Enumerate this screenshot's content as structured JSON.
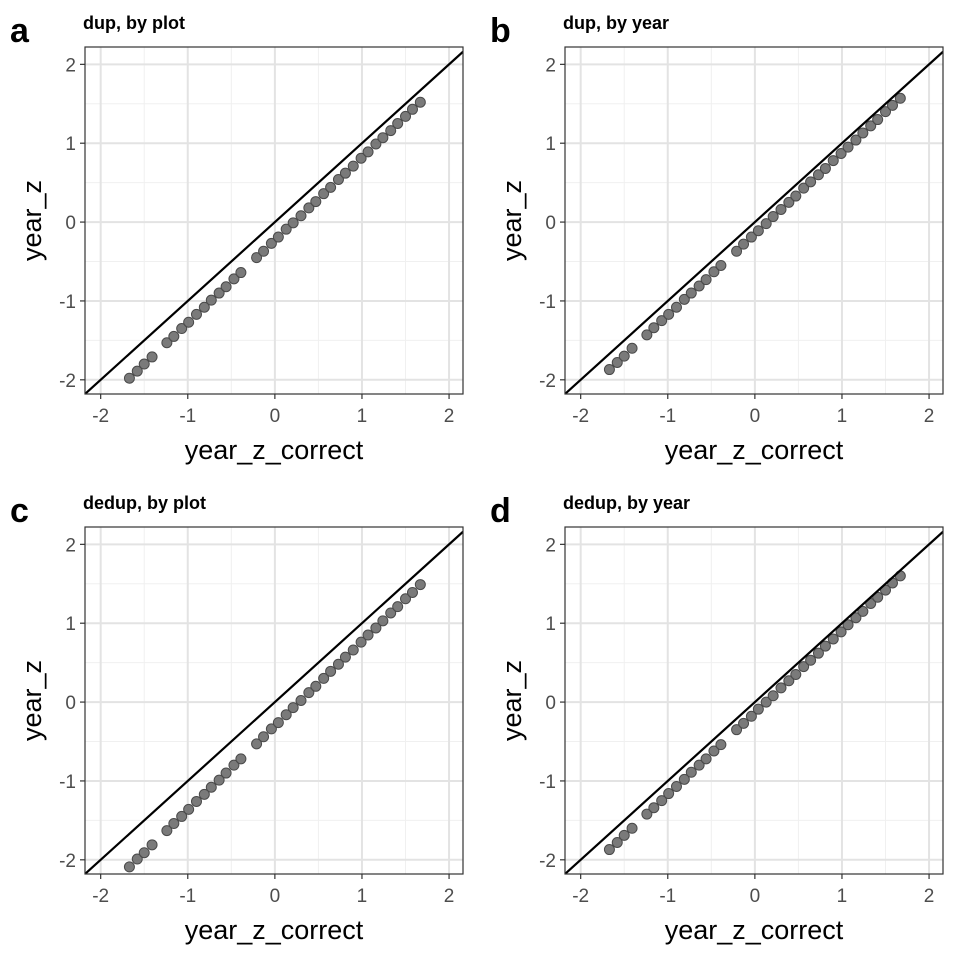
{
  "chart_data": [
    {
      "type": "scatter",
      "tag": "a",
      "title": "dup, by plot",
      "x_label": "year_z_correct",
      "y_label": "year_z",
      "xlim": [
        -2.18,
        2.16
      ],
      "ylim": [
        -2.18,
        2.22
      ],
      "xticks": [
        -2,
        -1,
        0,
        1,
        2
      ],
      "yticks": [
        -2,
        -1,
        0,
        1,
        2
      ],
      "xminor": [
        -1.5,
        -0.5,
        0.5,
        1.5
      ],
      "yminor": [
        -1.5,
        -0.5,
        0.5,
        1.5
      ],
      "grid": true,
      "identity_line": true,
      "color": "#6b6b6b",
      "x": [
        -1.67,
        -1.58,
        -1.5,
        -1.41,
        -1.24,
        -1.16,
        -1.07,
        -0.99,
        -0.9,
        -0.81,
        -0.73,
        -0.64,
        -0.56,
        -0.47,
        -0.39,
        -0.21,
        -0.13,
        -0.04,
        0.04,
        0.13,
        0.21,
        0.3,
        0.39,
        0.47,
        0.56,
        0.64,
        0.73,
        0.81,
        0.9,
        0.99,
        1.07,
        1.16,
        1.24,
        1.33,
        1.41,
        1.5,
        1.58,
        1.67
      ],
      "values": [
        -1.98,
        -1.89,
        -1.8,
        -1.71,
        -1.53,
        -1.45,
        -1.35,
        -1.27,
        -1.17,
        -1.08,
        -0.99,
        -0.9,
        -0.82,
        -0.72,
        -0.64,
        -0.45,
        -0.37,
        -0.27,
        -0.19,
        -0.09,
        -0.01,
        0.08,
        0.18,
        0.26,
        0.36,
        0.44,
        0.54,
        0.62,
        0.71,
        0.81,
        0.89,
        0.99,
        1.07,
        1.16,
        1.25,
        1.34,
        1.43,
        1.52
      ]
    },
    {
      "type": "scatter",
      "tag": "b",
      "title": "dup, by year",
      "x_label": "year_z_correct",
      "y_label": "year_z",
      "xlim": [
        -2.18,
        2.16
      ],
      "ylim": [
        -2.18,
        2.22
      ],
      "xticks": [
        -2,
        -1,
        0,
        1,
        2
      ],
      "yticks": [
        -2,
        -1,
        0,
        1,
        2
      ],
      "xminor": [
        -1.5,
        -0.5,
        0.5,
        1.5
      ],
      "yminor": [
        -1.5,
        -0.5,
        0.5,
        1.5
      ],
      "grid": true,
      "identity_line": true,
      "color": "#6b6b6b",
      "x": [
        -1.67,
        -1.58,
        -1.5,
        -1.41,
        -1.24,
        -1.16,
        -1.07,
        -0.99,
        -0.9,
        -0.81,
        -0.73,
        -0.64,
        -0.56,
        -0.47,
        -0.39,
        -0.21,
        -0.13,
        -0.04,
        0.04,
        0.13,
        0.21,
        0.3,
        0.39,
        0.47,
        0.56,
        0.64,
        0.73,
        0.81,
        0.9,
        0.99,
        1.07,
        1.16,
        1.24,
        1.33,
        1.41,
        1.5,
        1.58,
        1.67
      ],
      "values": [
        -1.87,
        -1.78,
        -1.7,
        -1.6,
        -1.43,
        -1.34,
        -1.25,
        -1.17,
        -1.08,
        -0.98,
        -0.9,
        -0.81,
        -0.73,
        -0.63,
        -0.55,
        -0.37,
        -0.28,
        -0.19,
        -0.11,
        -0.02,
        0.07,
        0.16,
        0.25,
        0.33,
        0.43,
        0.51,
        0.6,
        0.68,
        0.78,
        0.87,
        0.95,
        1.04,
        1.13,
        1.22,
        1.3,
        1.4,
        1.48,
        1.57
      ]
    },
    {
      "type": "scatter",
      "tag": "c",
      "title": "dedup, by plot",
      "x_label": "year_z_correct",
      "y_label": "year_z",
      "xlim": [
        -2.18,
        2.16
      ],
      "ylim": [
        -2.18,
        2.22
      ],
      "xticks": [
        -2,
        -1,
        0,
        1,
        2
      ],
      "yticks": [
        -2,
        -1,
        0,
        1,
        2
      ],
      "xminor": [
        -1.5,
        -0.5,
        0.5,
        1.5
      ],
      "yminor": [
        -1.5,
        -0.5,
        0.5,
        1.5
      ],
      "grid": true,
      "identity_line": true,
      "color": "#6b6b6b",
      "x": [
        -1.67,
        -1.58,
        -1.5,
        -1.41,
        -1.24,
        -1.16,
        -1.07,
        -0.99,
        -0.9,
        -0.81,
        -0.73,
        -0.64,
        -0.56,
        -0.47,
        -0.39,
        -0.21,
        -0.13,
        -0.04,
        0.04,
        0.13,
        0.21,
        0.3,
        0.39,
        0.47,
        0.56,
        0.64,
        0.73,
        0.81,
        0.9,
        0.99,
        1.07,
        1.16,
        1.24,
        1.33,
        1.41,
        1.5,
        1.58,
        1.67
      ],
      "values": [
        -2.09,
        -1.99,
        -1.91,
        -1.81,
        -1.63,
        -1.54,
        -1.45,
        -1.36,
        -1.26,
        -1.17,
        -1.08,
        -0.99,
        -0.9,
        -0.8,
        -0.72,
        -0.53,
        -0.44,
        -0.34,
        -0.26,
        -0.16,
        -0.07,
        0.02,
        0.12,
        0.2,
        0.3,
        0.39,
        0.48,
        0.57,
        0.66,
        0.76,
        0.85,
        0.94,
        1.03,
        1.13,
        1.21,
        1.31,
        1.39,
        1.49
      ]
    },
    {
      "type": "scatter",
      "tag": "d",
      "title": "dedup, by year",
      "x_label": "year_z_correct",
      "y_label": "year_z",
      "xlim": [
        -2.18,
        2.16
      ],
      "ylim": [
        -2.18,
        2.22
      ],
      "xticks": [
        -2,
        -1,
        0,
        1,
        2
      ],
      "yticks": [
        -2,
        -1,
        0,
        1,
        2
      ],
      "xminor": [
        -1.5,
        -0.5,
        0.5,
        1.5
      ],
      "yminor": [
        -1.5,
        -0.5,
        0.5,
        1.5
      ],
      "grid": true,
      "identity_line": true,
      "color": "#6b6b6b",
      "x": [
        -1.67,
        -1.58,
        -1.5,
        -1.41,
        -1.24,
        -1.16,
        -1.07,
        -0.99,
        -0.9,
        -0.81,
        -0.73,
        -0.64,
        -0.56,
        -0.47,
        -0.39,
        -0.21,
        -0.13,
        -0.04,
        0.04,
        0.13,
        0.21,
        0.3,
        0.39,
        0.47,
        0.56,
        0.64,
        0.73,
        0.81,
        0.9,
        0.99,
        1.07,
        1.16,
        1.24,
        1.33,
        1.41,
        1.5,
        1.58,
        1.67
      ],
      "values": [
        -1.87,
        -1.78,
        -1.69,
        -1.6,
        -1.42,
        -1.34,
        -1.25,
        -1.16,
        -1.07,
        -0.98,
        -0.89,
        -0.8,
        -0.72,
        -0.62,
        -0.54,
        -0.35,
        -0.27,
        -0.18,
        -0.09,
        0.0,
        0.08,
        0.18,
        0.27,
        0.35,
        0.45,
        0.53,
        0.62,
        0.71,
        0.8,
        0.89,
        0.98,
        1.07,
        1.15,
        1.25,
        1.33,
        1.42,
        1.51,
        1.6
      ]
    }
  ]
}
